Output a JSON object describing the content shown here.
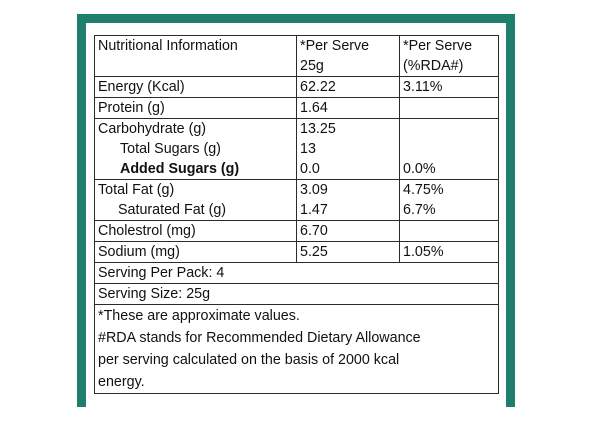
{
  "header": {
    "col1": "Nutritional Information",
    "col2": "*Per Serve 25g",
    "col2_line1": "*Per Serve",
    "col2_line2": "25g",
    "col3_line1": "*Per Serve",
    "col3_line2": "(%RDA#)"
  },
  "rows": {
    "energy": {
      "label": "Energy (Kcal)",
      "per_serve": "62.22",
      "rda": "3.11%"
    },
    "protein": {
      "label": "Protein (g)",
      "per_serve": "1.64",
      "rda": ""
    },
    "carbohydrate": {
      "label": "Carbohydrate (g)",
      "per_serve": "13.25",
      "rda": ""
    },
    "total_sugars": {
      "label": "Total Sugars (g)",
      "per_serve": "13",
      "rda": ""
    },
    "added_sugars": {
      "label": "Added Sugars (g)",
      "per_serve": "0.0",
      "rda": "0.0%"
    },
    "total_fat": {
      "label": "Total Fat (g)",
      "per_serve": "3.09",
      "rda": "4.75%"
    },
    "saturated_fat": {
      "label": "Saturated Fat (g)",
      "per_serve": "1.47",
      "rda": "6.7%"
    },
    "cholestrol": {
      "label": "Cholestrol (mg)",
      "per_serve": "6.70",
      "rda": ""
    },
    "sodium": {
      "label": "Sodium (mg)",
      "per_serve": "5.25",
      "rda": "1.05%"
    }
  },
  "serving_per_pack": "Serving Per Pack: 4",
  "serving_size": "Serving Size: 25g",
  "notes": [
    "*These are approximate values.",
    "#RDA stands for Recommended Dietary Allowance",
    "per serving calculated on the basis of 2000 kcal",
    "energy."
  ],
  "colors": {
    "frame": "#1f7f6b",
    "border": "#2b2b2b",
    "text": "#111111"
  }
}
